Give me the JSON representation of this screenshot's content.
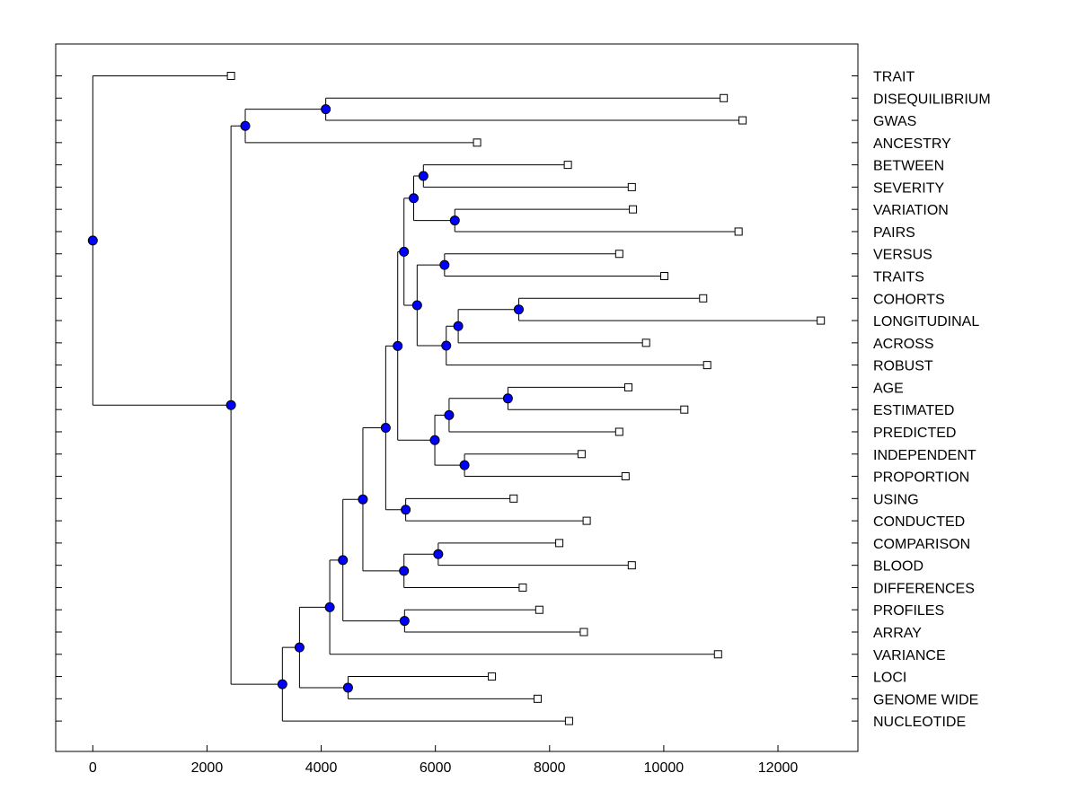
{
  "chart_data": {
    "type": "dendrogram",
    "title": "",
    "xlabel": "",
    "ylabel": "",
    "xlim": [
      -650,
      13400
    ],
    "x_ticks": [
      0,
      2000,
      4000,
      6000,
      8000,
      10000,
      12000
    ],
    "x_tick_labels": [
      "0",
      "2000",
      "4000",
      "6000",
      "8000",
      "10000",
      "12000"
    ],
    "leaves": [
      {
        "label": "TRAIT",
        "value": 2420
      },
      {
        "label": "DISEQUILIBRIUM",
        "value": 11050
      },
      {
        "label": "GWAS",
        "value": 11380
      },
      {
        "label": "ANCESTRY",
        "value": 6730
      },
      {
        "label": "BETWEEN",
        "value": 8320
      },
      {
        "label": "SEVERITY",
        "value": 9440
      },
      {
        "label": "VARIATION",
        "value": 9460
      },
      {
        "label": "PAIRS",
        "value": 11310
      },
      {
        "label": "VERSUS",
        "value": 9220
      },
      {
        "label": "TRAITS",
        "value": 10010
      },
      {
        "label": "COHORTS",
        "value": 10690
      },
      {
        "label": "LONGITUDINAL",
        "value": 12750
      },
      {
        "label": "ACROSS",
        "value": 9690
      },
      {
        "label": "ROBUST",
        "value": 10760
      },
      {
        "label": "AGE",
        "value": 9380
      },
      {
        "label": "ESTIMATED",
        "value": 10360
      },
      {
        "label": "PREDICTED",
        "value": 9220
      },
      {
        "label": "INDEPENDENT",
        "value": 8560
      },
      {
        "label": "PROPORTION",
        "value": 9330
      },
      {
        "label": "USING",
        "value": 7370
      },
      {
        "label": "CONDUCTED",
        "value": 8650
      },
      {
        "label": "COMPARISON",
        "value": 8170
      },
      {
        "label": "BLOOD",
        "value": 9440
      },
      {
        "label": "DIFFERENCES",
        "value": 7530
      },
      {
        "label": "PROFILES",
        "value": 7820
      },
      {
        "label": "ARRAY",
        "value": 8600
      },
      {
        "label": "VARIANCE",
        "value": 10950
      },
      {
        "label": "LOCI",
        "value": 6990
      },
      {
        "label": "GENOME WIDE",
        "value": 7790
      },
      {
        "label": "NUCLEOTIDE",
        "value": 8340
      }
    ],
    "nodes": [
      {
        "id": "n1",
        "value": 0,
        "children": [
          0,
          "n2"
        ]
      },
      {
        "id": "n2",
        "value": 2420,
        "children": [
          "n3",
          "n7"
        ]
      },
      {
        "id": "n3",
        "value": 2670,
        "children": [
          "n4",
          3
        ]
      },
      {
        "id": "n4",
        "value": 4080,
        "children": [
          1,
          2
        ]
      },
      {
        "id": "n7",
        "value": 3320,
        "children": [
          "n8",
          29
        ]
      },
      {
        "id": "n8",
        "value": 3620,
        "children": [
          "n9",
          "n28"
        ]
      },
      {
        "id": "n28",
        "value": 4470,
        "children": [
          27,
          28
        ]
      },
      {
        "id": "n9",
        "value": 4150,
        "children": [
          "n10",
          26
        ]
      },
      {
        "id": "n10",
        "value": 4380,
        "children": [
          "n11",
          "n27"
        ]
      },
      {
        "id": "n27",
        "value": 5460,
        "children": [
          24,
          25
        ]
      },
      {
        "id": "n11",
        "value": 4730,
        "children": [
          "n12",
          "n25"
        ]
      },
      {
        "id": "n25",
        "value": 5450,
        "children": [
          "n26",
          23
        ]
      },
      {
        "id": "n26",
        "value": 6050,
        "children": [
          21,
          22
        ]
      },
      {
        "id": "n12",
        "value": 5130,
        "children": [
          "n13",
          "n24"
        ]
      },
      {
        "id": "n24",
        "value": 5480,
        "children": [
          19,
          20
        ]
      },
      {
        "id": "n13",
        "value": 5340,
        "children": [
          "n14",
          "n21"
        ]
      },
      {
        "id": "n21",
        "value": 5990,
        "children": [
          "n22",
          "n23"
        ]
      },
      {
        "id": "n22",
        "value": 6240,
        "children": [
          "n22a",
          16
        ]
      },
      {
        "id": "n22a",
        "value": 7270,
        "children": [
          14,
          15
        ]
      },
      {
        "id": "n23",
        "value": 6510,
        "children": [
          17,
          18
        ]
      },
      {
        "id": "n14",
        "value": 5450,
        "children": [
          "n15",
          "n17"
        ]
      },
      {
        "id": "n15",
        "value": 5620,
        "children": [
          "n16",
          "n16b"
        ]
      },
      {
        "id": "n16",
        "value": 5790,
        "children": [
          4,
          5
        ]
      },
      {
        "id": "n16b",
        "value": 6340,
        "children": [
          6,
          7
        ]
      },
      {
        "id": "n17",
        "value": 5680,
        "children": [
          "n18",
          "n19"
        ]
      },
      {
        "id": "n18",
        "value": 6160,
        "children": [
          8,
          9
        ]
      },
      {
        "id": "n19",
        "value": 6190,
        "children": [
          "n20",
          13
        ]
      },
      {
        "id": "n20",
        "value": 6400,
        "children": [
          "n20a",
          12
        ]
      },
      {
        "id": "n20a",
        "value": 7460,
        "children": [
          10,
          11
        ]
      }
    ],
    "colors": {
      "line": "#000000",
      "node_fill": "#0000ff",
      "node_stroke": "#000000",
      "leaf_fill": "#ffffff",
      "leaf_stroke": "#000000"
    }
  }
}
